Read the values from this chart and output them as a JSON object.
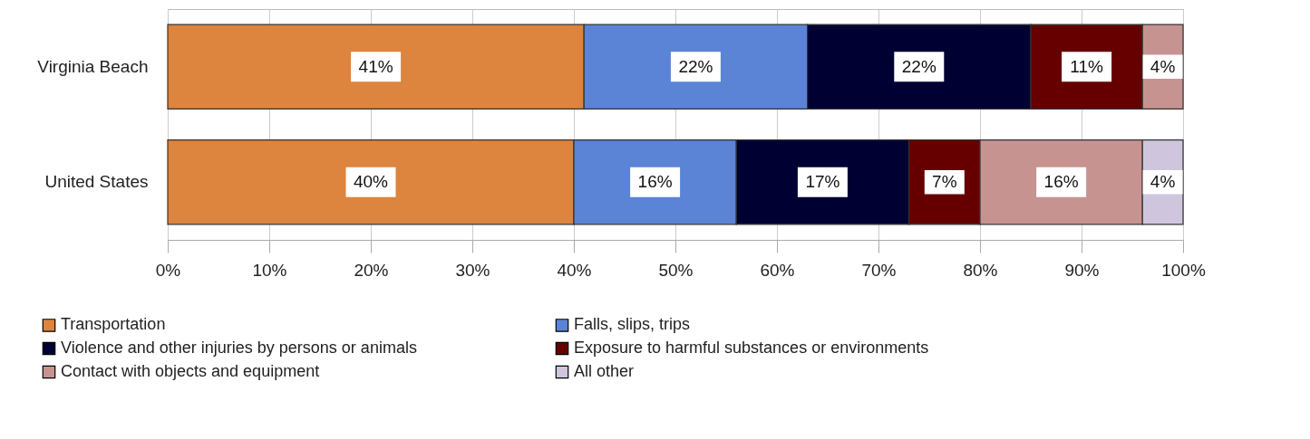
{
  "chart_data": {
    "type": "bar",
    "orientation": "horizontal",
    "stacked": true,
    "categories": [
      "Virginia Beach",
      "United States"
    ],
    "series": [
      {
        "name": "Transportation",
        "color": "#dd843e",
        "values": [
          41,
          40
        ],
        "value_labels": [
          "41%",
          "40%"
        ]
      },
      {
        "name": "Falls, slips, trips",
        "color": "#5b83d6",
        "values": [
          22,
          16
        ],
        "value_labels": [
          "22%",
          "16%"
        ]
      },
      {
        "name": "Violence and other injuries by persons or animals",
        "color": "#000033",
        "values": [
          22,
          17
        ],
        "value_labels": [
          "22%",
          "17%"
        ]
      },
      {
        "name": "Exposure to harmful substances or environments",
        "color": "#660000",
        "values": [
          11,
          7
        ],
        "value_labels": [
          "11%",
          "7%"
        ]
      },
      {
        "name": "Contact with objects and equipment",
        "color": "#c79391",
        "values": [
          4,
          16
        ],
        "value_labels": [
          "4%",
          "16%"
        ]
      },
      {
        "name": "All other",
        "color": "#cfc6de",
        "values": [
          null,
          4
        ],
        "value_labels": [
          null,
          "4%"
        ]
      }
    ],
    "xlim": [
      0,
      100
    ],
    "xticks": [
      {
        "value": 0,
        "label": "0%"
      },
      {
        "value": 10,
        "label": "10%"
      },
      {
        "value": 20,
        "label": "20%"
      },
      {
        "value": 30,
        "label": "30%"
      },
      {
        "value": 40,
        "label": "40%"
      },
      {
        "value": 50,
        "label": "50%"
      },
      {
        "value": 60,
        "label": "60%"
      },
      {
        "value": 70,
        "label": "70%"
      },
      {
        "value": 80,
        "label": "80%"
      },
      {
        "value": 90,
        "label": "90%"
      },
      {
        "value": 100,
        "label": "100%"
      }
    ],
    "grid": true,
    "legend": "bottom"
  }
}
